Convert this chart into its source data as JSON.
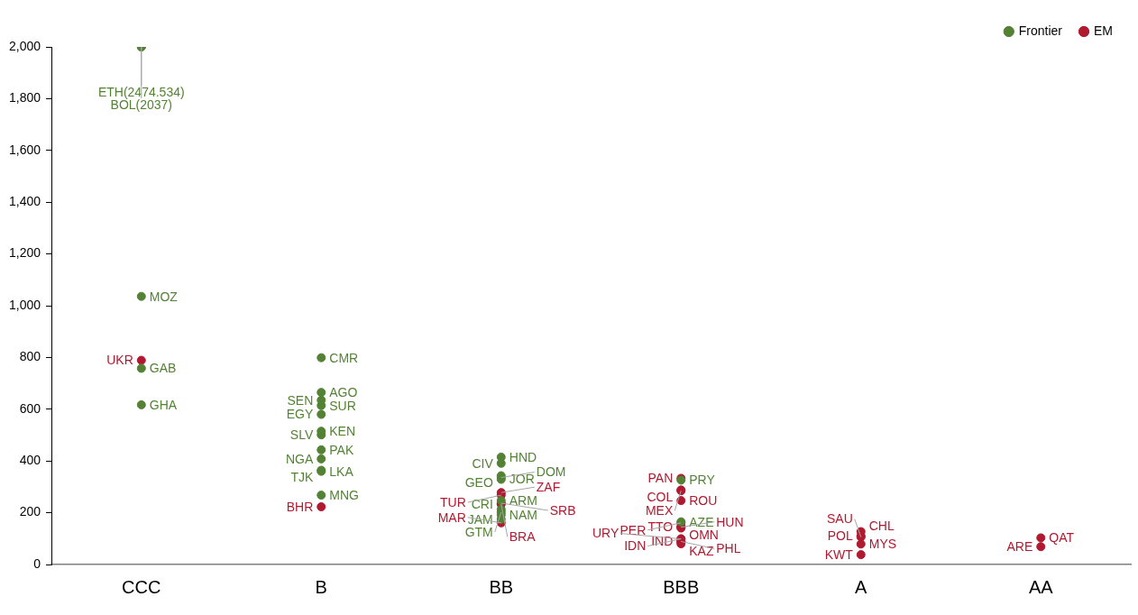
{
  "chart_data": {
    "type": "scatter",
    "categories": [
      "CCC",
      "B",
      "BB",
      "BBB",
      "A",
      "AA"
    ],
    "ylim": [
      0,
      2000
    ],
    "yticks": [
      0,
      {
        "value": 200,
        "label": "200"
      },
      {
        "value": 400,
        "label": "400"
      },
      {
        "value": 600,
        "label": "600"
      },
      {
        "value": 800,
        "label": "800"
      },
      {
        "value": 1000,
        "label": "1,000"
      },
      {
        "value": 1200,
        "label": "1,200"
      },
      {
        "value": 1400,
        "label": "1,400"
      },
      {
        "value": 1600,
        "label": "1,600"
      },
      {
        "value": 1800,
        "label": "1,800"
      },
      {
        "value": 2000,
        "label": "2,000"
      }
    ],
    "grid": false,
    "legend": "top right",
    "marker": "circle",
    "series": [
      {
        "name": "Frontier",
        "color": "#548235",
        "x": [
          "CCC",
          "CCC",
          "CCC",
          "CCC",
          "CCC",
          "B",
          "B",
          "B",
          "B",
          "B",
          "B",
          "B",
          "B",
          "B",
          "B",
          "B",
          "B",
          "BB",
          "BB",
          "BB",
          "BB",
          "BB",
          "BB",
          "BB",
          "BB",
          "BB",
          "BB",
          "BBB",
          "BBB"
        ],
        "values": [
          2000,
          2000,
          1036,
          758,
          617,
          614,
          443,
          360,
          799,
          665,
          635,
          580,
          515,
          501,
          408,
          364,
          268,
          415,
          329,
          247,
          192,
          175,
          213,
          391,
          343,
          336,
          202,
          165,
          326
        ],
        "value_labels": [
          "ETH(2474.534)",
          "BOL(2037)",
          "MOZ",
          "GAB",
          "GHA",
          "SUR",
          "PAK",
          "LKA",
          "CMR",
          "AGO",
          "SEN",
          "EGY",
          "KEN",
          "SLV",
          "NGA",
          "TJK",
          "MNG",
          "HND",
          "JOR",
          "ARM",
          "NAM",
          "JAM",
          "CRI",
          "CIV",
          "GEO",
          "DOM",
          "GTM",
          "AZE",
          "PRY"
        ]
      },
      {
        "name": "EM",
        "color": "#b0192f",
        "x": [
          "CCC",
          "B",
          "BB",
          "BB",
          "BB",
          "BB",
          "BB",
          "BBB",
          "BBB",
          "BBB",
          "BBB",
          "BBB",
          "BBB",
          "BBB",
          "BBB",
          "BBB",
          "BBB",
          "BBB",
          "BBB",
          "BBB",
          "A",
          "A",
          "A",
          "A",
          "A",
          "AA",
          "AA"
        ],
        "values": [
          789,
          223,
          268,
          278,
          233,
          237,
          161,
          147,
          141,
          333,
          288,
          247,
          89,
          285,
          144,
          161,
          99,
          80,
          89,
          99,
          79,
          110,
          127,
          106,
          38,
          103,
          69
        ],
        "value_labels": [
          "UKR",
          "BHR",
          "TUR",
          "ZAF",
          "BRA",
          "SRB",
          "MAR",
          "TTO",
          "OMN",
          "PAN",
          "COL",
          "ROU",
          "IND",
          "MEX",
          "HUN",
          "PER",
          "IDN",
          "KAZ",
          "PHL",
          "URY",
          "MYS",
          "POL",
          "CHL",
          "SAU",
          "KWT",
          "QAT",
          "ARE"
        ]
      }
    ]
  }
}
